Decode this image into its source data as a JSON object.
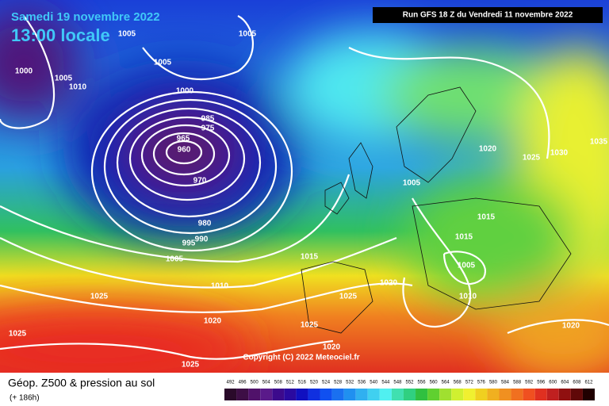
{
  "header": {
    "date": "Samedi 19 novembre 2022",
    "time": "13:00 locale",
    "run": "Run GFS 18 Z du Vendredi 11 novembre 2022"
  },
  "isobar_labels": [
    1005,
    1005,
    1000,
    1005,
    1005,
    1010,
    1000,
    985,
    975,
    965,
    960,
    970,
    980,
    990,
    995,
    1005,
    1015,
    1010,
    1020,
    1025,
    1025,
    1020,
    1025,
    1025,
    1020,
    1025,
    1005,
    1015,
    1015,
    1005,
    1010,
    1020,
    1025,
    1030,
    1035,
    1020
  ],
  "copyright": "Copyright (C) 2022 Meteociel.fr",
  "legend": {
    "title": "Géop. Z500 & pression au sol",
    "lead": "(+ 186h)",
    "scale": [
      492,
      496,
      500,
      504,
      508,
      512,
      516,
      520,
      524,
      528,
      532,
      536,
      540,
      544,
      548,
      552,
      556,
      560,
      564,
      568,
      572,
      576,
      580,
      584,
      588,
      592,
      596,
      600,
      604,
      608,
      612
    ],
    "colors": [
      "#2a0a2a",
      "#3d0e45",
      "#50126a",
      "#5a1a8a",
      "#3c0a8c",
      "#2a0aa0",
      "#1010c0",
      "#1030e0",
      "#1050f0",
      "#1a70f0",
      "#2090f0",
      "#30b0f0",
      "#40d0f0",
      "#50f0f0",
      "#40e0b0",
      "#30d080",
      "#30c040",
      "#60d030",
      "#a0e030",
      "#d0f030",
      "#f0f030",
      "#f0d020",
      "#f0b020",
      "#f09020",
      "#f07020",
      "#f05020",
      "#e03020",
      "#c02020",
      "#901010",
      "#600808",
      "#200000"
    ]
  }
}
